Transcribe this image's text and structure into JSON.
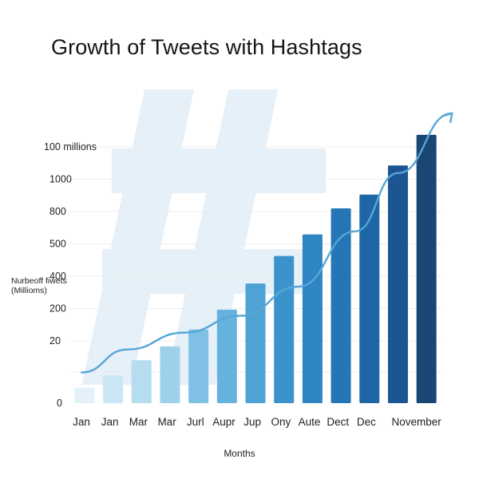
{
  "title": "Growth of Tweets with Hashtags",
  "watermark_icon": "hashtag-icon",
  "colors": {
    "watermark": "#e6f0f8",
    "trend": "#56a7d6",
    "bars": [
      "#e3f1fa",
      "#cbe7f5",
      "#b6dcf0",
      "#9ed0eb",
      "#80c0e5",
      "#66b2de",
      "#4ea2d4",
      "#3c93cc",
      "#2f84c2",
      "#2675b6",
      "#1f66a7",
      "#1c5592",
      "#1a4674",
      "#162e4a"
    ]
  },
  "chart_data": {
    "type": "bar",
    "title": "Growth of Tweets with Hashtags",
    "xlabel": "Months",
    "ylabel": "Nurbeoff fiwets (Millioms)",
    "categories": [
      "Jan",
      "Jan",
      "Mar",
      "Mar",
      "Jurl",
      "Aupr",
      "Jup",
      "Ony",
      "Aute",
      "Dect",
      "Dec",
      "November"
    ],
    "y_tick_labels": [
      "0",
      "20",
      "200",
      "400",
      "500",
      "800",
      "1000",
      "100 millions"
    ],
    "bars": [
      {
        "label": "",
        "value": 0.5
      },
      {
        "label": "Jan",
        "value": 0.9
      },
      {
        "label": "Jan",
        "value": 1.4
      },
      {
        "label": "Mar",
        "value": 1.85
      },
      {
        "label": "Mar",
        "value": 2.4
      },
      {
        "label": "Jurl",
        "value": 3.05
      },
      {
        "label": "Aupr",
        "value": 3.9
      },
      {
        "label": "Jup",
        "value": 4.8
      },
      {
        "label": "Ony",
        "value": 5.5
      },
      {
        "label": "Aute",
        "value": 6.35
      },
      {
        "label": "Dect",
        "value": 6.8
      },
      {
        "label": "Dec",
        "value": 7.75
      },
      {
        "label": "November",
        "value": 8.75
      }
    ],
    "trend_line": {
      "x": [
        -0.1,
        1.5,
        3.5,
        5.5,
        7.5,
        9.5,
        11.0,
        12.9
      ],
      "y": [
        1.0,
        1.75,
        2.3,
        2.85,
        3.8,
        5.6,
        7.5,
        9.45
      ],
      "arrow_end": true
    },
    "ylim": [
      0,
      9.5
    ],
    "grid": true,
    "legend": "none"
  }
}
